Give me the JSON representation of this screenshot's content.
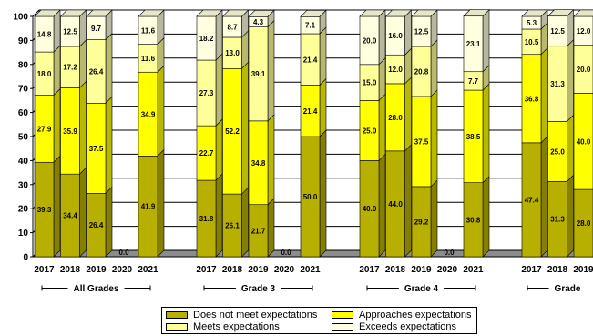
{
  "chart_data": {
    "type": "bar",
    "stacked": true,
    "yaxis": {
      "min": 0,
      "max": 100,
      "ticks": [
        "0",
        "10",
        "20",
        "30",
        "40",
        "50",
        "60",
        "70",
        "80",
        "90",
        "100"
      ]
    },
    "grid": true,
    "legend_position": "bottom-center",
    "series": [
      {
        "name": "Does not meet expectations",
        "color": "#b8b000"
      },
      {
        "name": "Approaches expectations",
        "color": "#ffff00"
      },
      {
        "name": "Meets expectations",
        "color": "#ffff99"
      },
      {
        "name": "Exceeds expectations",
        "color": "#ffffe0"
      }
    ],
    "groups": [
      {
        "label": "All Grades",
        "bars": [
          {
            "year": "2017",
            "values": [
              39.3,
              27.9,
              18.0,
              14.8
            ],
            "labels": [
              "39.3",
              "27.9",
              "18.0",
              "14.8"
            ]
          },
          {
            "year": "2018",
            "values": [
              34.4,
              35.9,
              17.2,
              12.5
            ],
            "labels": [
              "34.4",
              "35.9",
              "17.2",
              "12.5"
            ]
          },
          {
            "year": "2019",
            "values": [
              26.4,
              37.5,
              26.4,
              9.7
            ],
            "labels": [
              "26.4",
              "37.5",
              "26.4",
              "9.7"
            ]
          },
          {
            "year": "2020",
            "values": [
              0,
              0,
              0,
              0
            ],
            "labels": [
              "0.0",
              "",
              "",
              ""
            ]
          },
          {
            "year": "2021",
            "values": [
              41.9,
              34.9,
              11.6,
              11.6
            ],
            "labels": [
              "41.9",
              "34.9",
              "11.6",
              "11.6"
            ]
          }
        ]
      },
      {
        "label": "Grade 3",
        "bars": [
          {
            "year": "2017",
            "values": [
              31.8,
              22.7,
              27.3,
              18.2
            ],
            "labels": [
              "31.8",
              "22.7",
              "27.3",
              "18.2"
            ]
          },
          {
            "year": "2018",
            "values": [
              26.1,
              52.2,
              13.0,
              8.7
            ],
            "labels": [
              "26.1",
              "52.2",
              "13.0",
              "8.7"
            ]
          },
          {
            "year": "2019",
            "values": [
              21.7,
              34.8,
              39.1,
              4.3
            ],
            "labels": [
              "21.7",
              "34.8",
              "39.1",
              "4.3"
            ]
          },
          {
            "year": "2020",
            "values": [
              0,
              0,
              0,
              0
            ],
            "labels": [
              "0.0",
              "",
              "",
              ""
            ]
          },
          {
            "year": "2021",
            "values": [
              50.0,
              21.4,
              21.4,
              7.1
            ],
            "labels": [
              "50.0",
              "21.4",
              "21.4",
              "7.1"
            ]
          }
        ]
      },
      {
        "label": "Grade 4",
        "bars": [
          {
            "year": "2017",
            "values": [
              40.0,
              25.0,
              15.0,
              20.0
            ],
            "labels": [
              "40.0",
              "25.0",
              "15.0",
              "20.0"
            ]
          },
          {
            "year": "2018",
            "values": [
              44.0,
              28.0,
              12.0,
              16.0
            ],
            "labels": [
              "44.0",
              "28.0",
              "12.0",
              "16.0"
            ]
          },
          {
            "year": "2019",
            "values": [
              29.2,
              37.5,
              20.8,
              12.5
            ],
            "labels": [
              "29.2",
              "37.5",
              "20.8",
              "12.5"
            ]
          },
          {
            "year": "2020",
            "values": [
              0,
              0,
              0,
              0
            ],
            "labels": [
              "0.0",
              "",
              "",
              ""
            ]
          },
          {
            "year": "2021",
            "values": [
              30.8,
              38.5,
              7.7,
              23.1
            ],
            "labels": [
              "30.8",
              "38.5",
              "7.7",
              "23.1"
            ]
          }
        ]
      },
      {
        "label": "Grade",
        "bars": [
          {
            "year": "2017",
            "values": [
              47.4,
              36.8,
              10.5,
              5.3
            ],
            "labels": [
              "47.4",
              "36.8",
              "10.5",
              "5.3"
            ]
          },
          {
            "year": "2018",
            "values": [
              31.3,
              25.0,
              31.3,
              12.5
            ],
            "labels": [
              "31.3",
              "25.0",
              "31.3",
              "12.5"
            ]
          },
          {
            "year": "2019",
            "values": [
              28.0,
              40.0,
              20.0,
              12.0
            ],
            "labels": [
              "28.0",
              "40.0",
              "20.0",
              "12.0"
            ]
          }
        ]
      }
    ]
  }
}
